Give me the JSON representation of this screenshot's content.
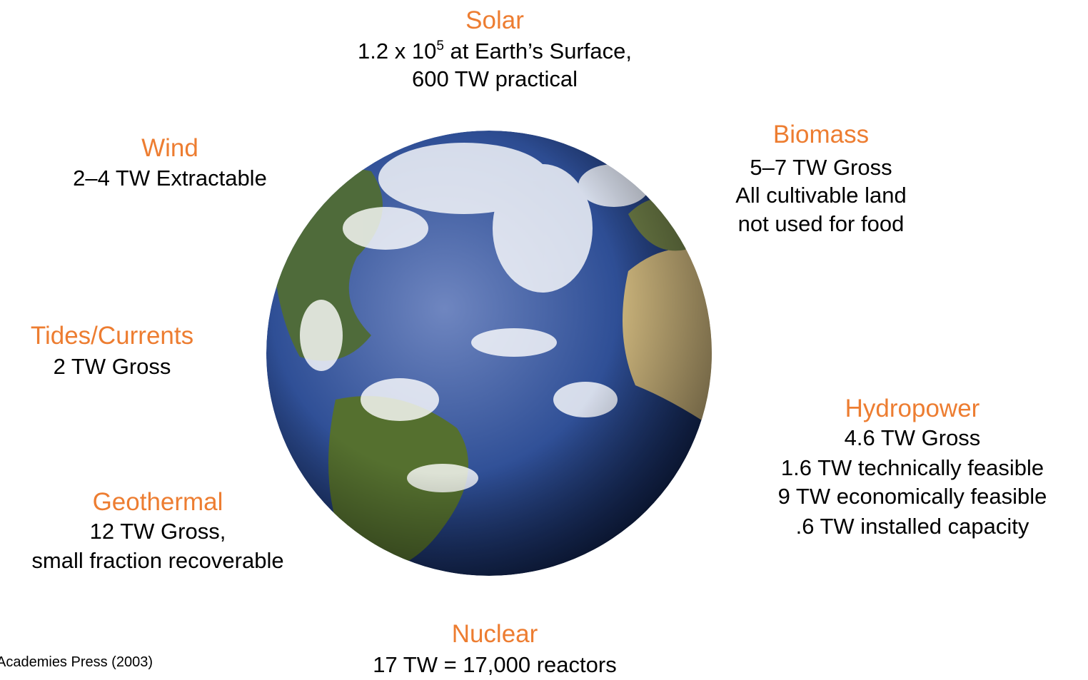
{
  "labels": [
    {
      "title": "Solar",
      "lines": [
        {
          "base": "1.2 x 10",
          "exponent": "5",
          "rest": " at Earth’s Surface,"
        },
        "600 TW practical"
      ]
    },
    {
      "title": "Wind",
      "lines": [
        "2–4 TW Extractable"
      ]
    },
    {
      "title": "Biomass",
      "lines": [
        "5–7 TW Gross",
        "All cultivable land",
        "not used for food"
      ]
    },
    {
      "title": "Tides/Currents",
      "lines": [
        "2 TW Gross"
      ]
    },
    {
      "title": "Hydropower",
      "lines": [
        "4.6 TW Gross",
        "1.6 TW technically feasible",
        "9 TW economically feasible",
        ".6 TW installed capacity"
      ]
    },
    {
      "title": "Geothermal",
      "lines": [
        "12 TW Gross,",
        "small fraction recoverable"
      ]
    },
    {
      "title": "Nuclear",
      "lines": [
        "17 TW = 17,000 reactors"
      ]
    }
  ],
  "footnote": "Academies Press (2003)"
}
